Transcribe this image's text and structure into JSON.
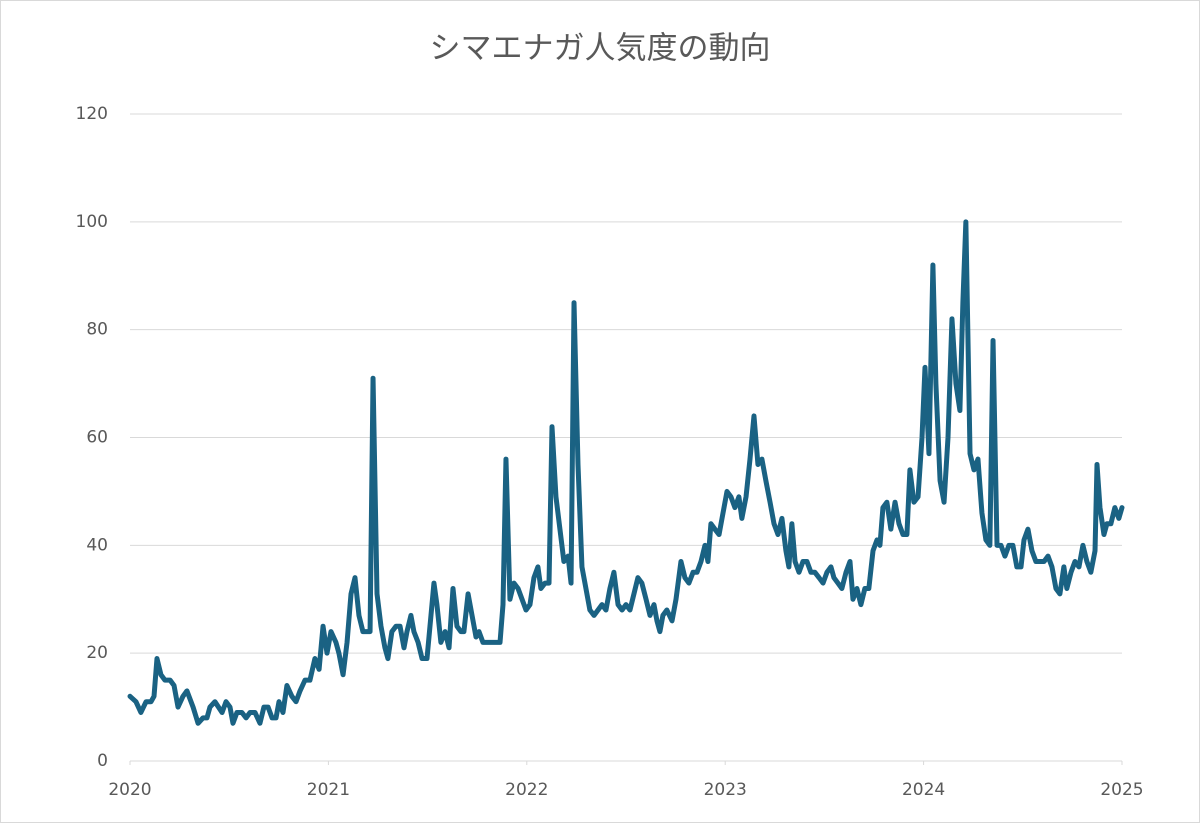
{
  "chart_data": {
    "type": "line",
    "title": "シマエナガ人気度の動向",
    "x": [
      2020,
      2020.03,
      2020.055,
      2020.081,
      2020.106,
      2020.121,
      2020.136,
      2020.156,
      2020.176,
      2020.202,
      2020.222,
      2020.242,
      2020.267,
      2020.287,
      2020.318,
      2020.343,
      2020.368,
      2020.388,
      2020.403,
      2020.428,
      2020.464,
      2020.484,
      2020.504,
      2020.519,
      2020.539,
      2020.564,
      2020.585,
      2020.605,
      2020.63,
      2020.655,
      2020.675,
      2020.696,
      2020.716,
      2020.736,
      2020.751,
      2020.771,
      2020.791,
      2020.816,
      2020.837,
      2020.857,
      2020.882,
      2020.907,
      2020.932,
      2020.953,
      2020.973,
      2020.993,
      2021.013,
      2021.038,
      2021.053,
      2021.074,
      2021.094,
      2021.114,
      2021.134,
      2021.154,
      2021.174,
      2021.194,
      2021.21,
      2021.225,
      2021.245,
      2021.265,
      2021.285,
      2021.3,
      2021.32,
      2021.341,
      2021.361,
      2021.381,
      2021.396,
      2021.416,
      2021.431,
      2021.452,
      2021.472,
      2021.497,
      2021.517,
      2021.532,
      2021.547,
      2021.567,
      2021.588,
      2021.608,
      2021.628,
      2021.648,
      2021.668,
      2021.683,
      2021.704,
      2021.724,
      2021.744,
      2021.759,
      2021.779,
      2021.804,
      2021.824,
      2021.845,
      2021.865,
      2021.88,
      2021.895,
      2021.915,
      2021.935,
      2021.956,
      2021.976,
      2021.996,
      2022.016,
      2022.036,
      2022.056,
      2022.071,
      2022.092,
      2022.112,
      2022.127,
      2022.147,
      2022.167,
      2022.187,
      2022.208,
      2022.223,
      2022.238,
      2022.258,
      2022.278,
      2022.298,
      2022.318,
      2022.339,
      2022.359,
      2022.379,
      2022.399,
      2022.419,
      2022.439,
      2022.46,
      2022.48,
      2022.5,
      2022.52,
      2022.54,
      2022.56,
      2022.58,
      2022.601,
      2022.621,
      2022.641,
      2022.656,
      2022.671,
      2022.686,
      2022.706,
      2022.732,
      2022.752,
      2022.777,
      2022.797,
      2022.817,
      2022.838,
      2022.858,
      2022.878,
      2022.898,
      2022.913,
      2022.928,
      2022.948,
      2022.969,
      2022.989,
      2023.009,
      2023.029,
      2023.049,
      2023.069,
      2023.084,
      2023.105,
      2023.125,
      2023.145,
      2023.165,
      2023.185,
      2023.205,
      2023.226,
      2023.246,
      2023.266,
      2023.286,
      2023.306,
      2023.321,
      2023.336,
      2023.352,
      2023.372,
      2023.392,
      2023.412,
      2023.432,
      2023.452,
      2023.473,
      2023.493,
      2023.513,
      2023.533,
      2023.548,
      2023.568,
      2023.588,
      2023.609,
      2023.629,
      2023.644,
      2023.664,
      2023.684,
      2023.704,
      2023.724,
      2023.745,
      2023.765,
      2023.78,
      2023.795,
      2023.815,
      2023.835,
      2023.856,
      2023.876,
      2023.896,
      2023.916,
      2023.931,
      2023.951,
      2023.972,
      2023.992,
      2024.007,
      2024.027,
      2024.047,
      2024.062,
      2024.083,
      2024.103,
      2024.123,
      2024.143,
      2024.163,
      2024.183,
      2024.198,
      2024.213,
      2024.234,
      2024.254,
      2024.274,
      2024.294,
      2024.314,
      2024.334,
      2024.35,
      2024.37,
      2024.39,
      2024.41,
      2024.43,
      2024.45,
      2024.47,
      2024.491,
      2024.506,
      2024.526,
      2024.546,
      2024.566,
      2024.586,
      2024.607,
      2024.627,
      2024.647,
      2024.667,
      2024.687,
      2024.707,
      2024.722,
      2024.743,
      2024.763,
      2024.783,
      2024.803,
      2024.823,
      2024.843,
      2024.864,
      2024.874,
      2024.889,
      2024.909,
      2024.924,
      2024.944,
      2024.964,
      2024.984,
      2025
    ],
    "values": [
      12,
      11,
      9,
      11,
      11,
      12,
      19,
      16,
      15,
      15,
      14,
      10,
      12,
      13,
      10,
      7,
      8,
      8,
      10,
      11,
      9,
      11,
      10,
      7,
      9,
      9,
      8,
      9,
      9,
      7,
      10,
      10,
      8,
      8,
      11,
      9,
      14,
      12,
      11,
      13,
      15,
      15,
      19,
      17,
      25,
      20,
      24,
      22,
      20,
      16,
      22,
      31,
      34,
      27,
      24,
      24,
      24,
      71,
      31,
      25,
      21,
      19,
      24,
      25,
      25,
      21,
      24,
      27,
      24,
      22,
      19,
      19,
      27,
      33,
      29,
      22,
      24,
      21,
      32,
      25,
      24,
      24,
      31,
      27,
      23,
      24,
      22,
      22,
      22,
      22,
      22,
      29,
      56,
      30,
      33,
      32,
      30,
      28,
      29,
      34,
      36,
      32,
      33,
      33,
      62,
      49,
      43,
      37,
      38,
      33,
      85,
      55,
      36,
      32,
      28,
      27,
      28,
      29,
      28,
      32,
      35,
      29,
      28,
      29,
      28,
      31,
      34,
      33,
      30,
      27,
      29,
      26,
      24,
      27,
      28,
      26,
      30,
      37,
      34,
      33,
      35,
      35,
      37,
      40,
      37,
      44,
      43,
      42,
      46,
      50,
      49,
      47,
      49,
      45,
      49,
      56,
      64,
      55,
      56,
      52,
      48,
      44,
      42,
      45,
      39,
      36,
      44,
      37,
      35,
      37,
      37,
      35,
      35,
      34,
      33,
      35,
      36,
      34,
      33,
      32,
      35,
      37,
      30,
      32,
      29,
      32,
      32,
      39,
      41,
      40,
      47,
      48,
      43,
      48,
      44,
      42,
      42,
      54,
      48,
      49,
      60,
      73,
      57,
      92,
      70,
      52,
      48,
      60,
      82,
      70,
      65,
      85,
      100,
      57,
      54,
      56,
      46,
      41,
      40,
      78,
      40,
      40,
      38,
      40,
      40,
      36,
      36,
      41,
      43,
      39,
      37,
      37,
      37,
      38,
      36,
      32,
      31,
      36,
      32,
      35,
      37,
      36,
      40,
      37,
      35,
      39,
      55,
      47,
      42,
      44,
      44,
      47,
      45,
      47
    ],
    "color": "#1a6283",
    "xlim": [
      2020,
      2025
    ],
    "xticks": [
      2020,
      2021,
      2022,
      2023,
      2024,
      2025
    ],
    "ylim": [
      0,
      120
    ],
    "yticks": [
      0,
      20,
      40,
      60,
      80,
      100,
      120
    ],
    "grid": true
  }
}
